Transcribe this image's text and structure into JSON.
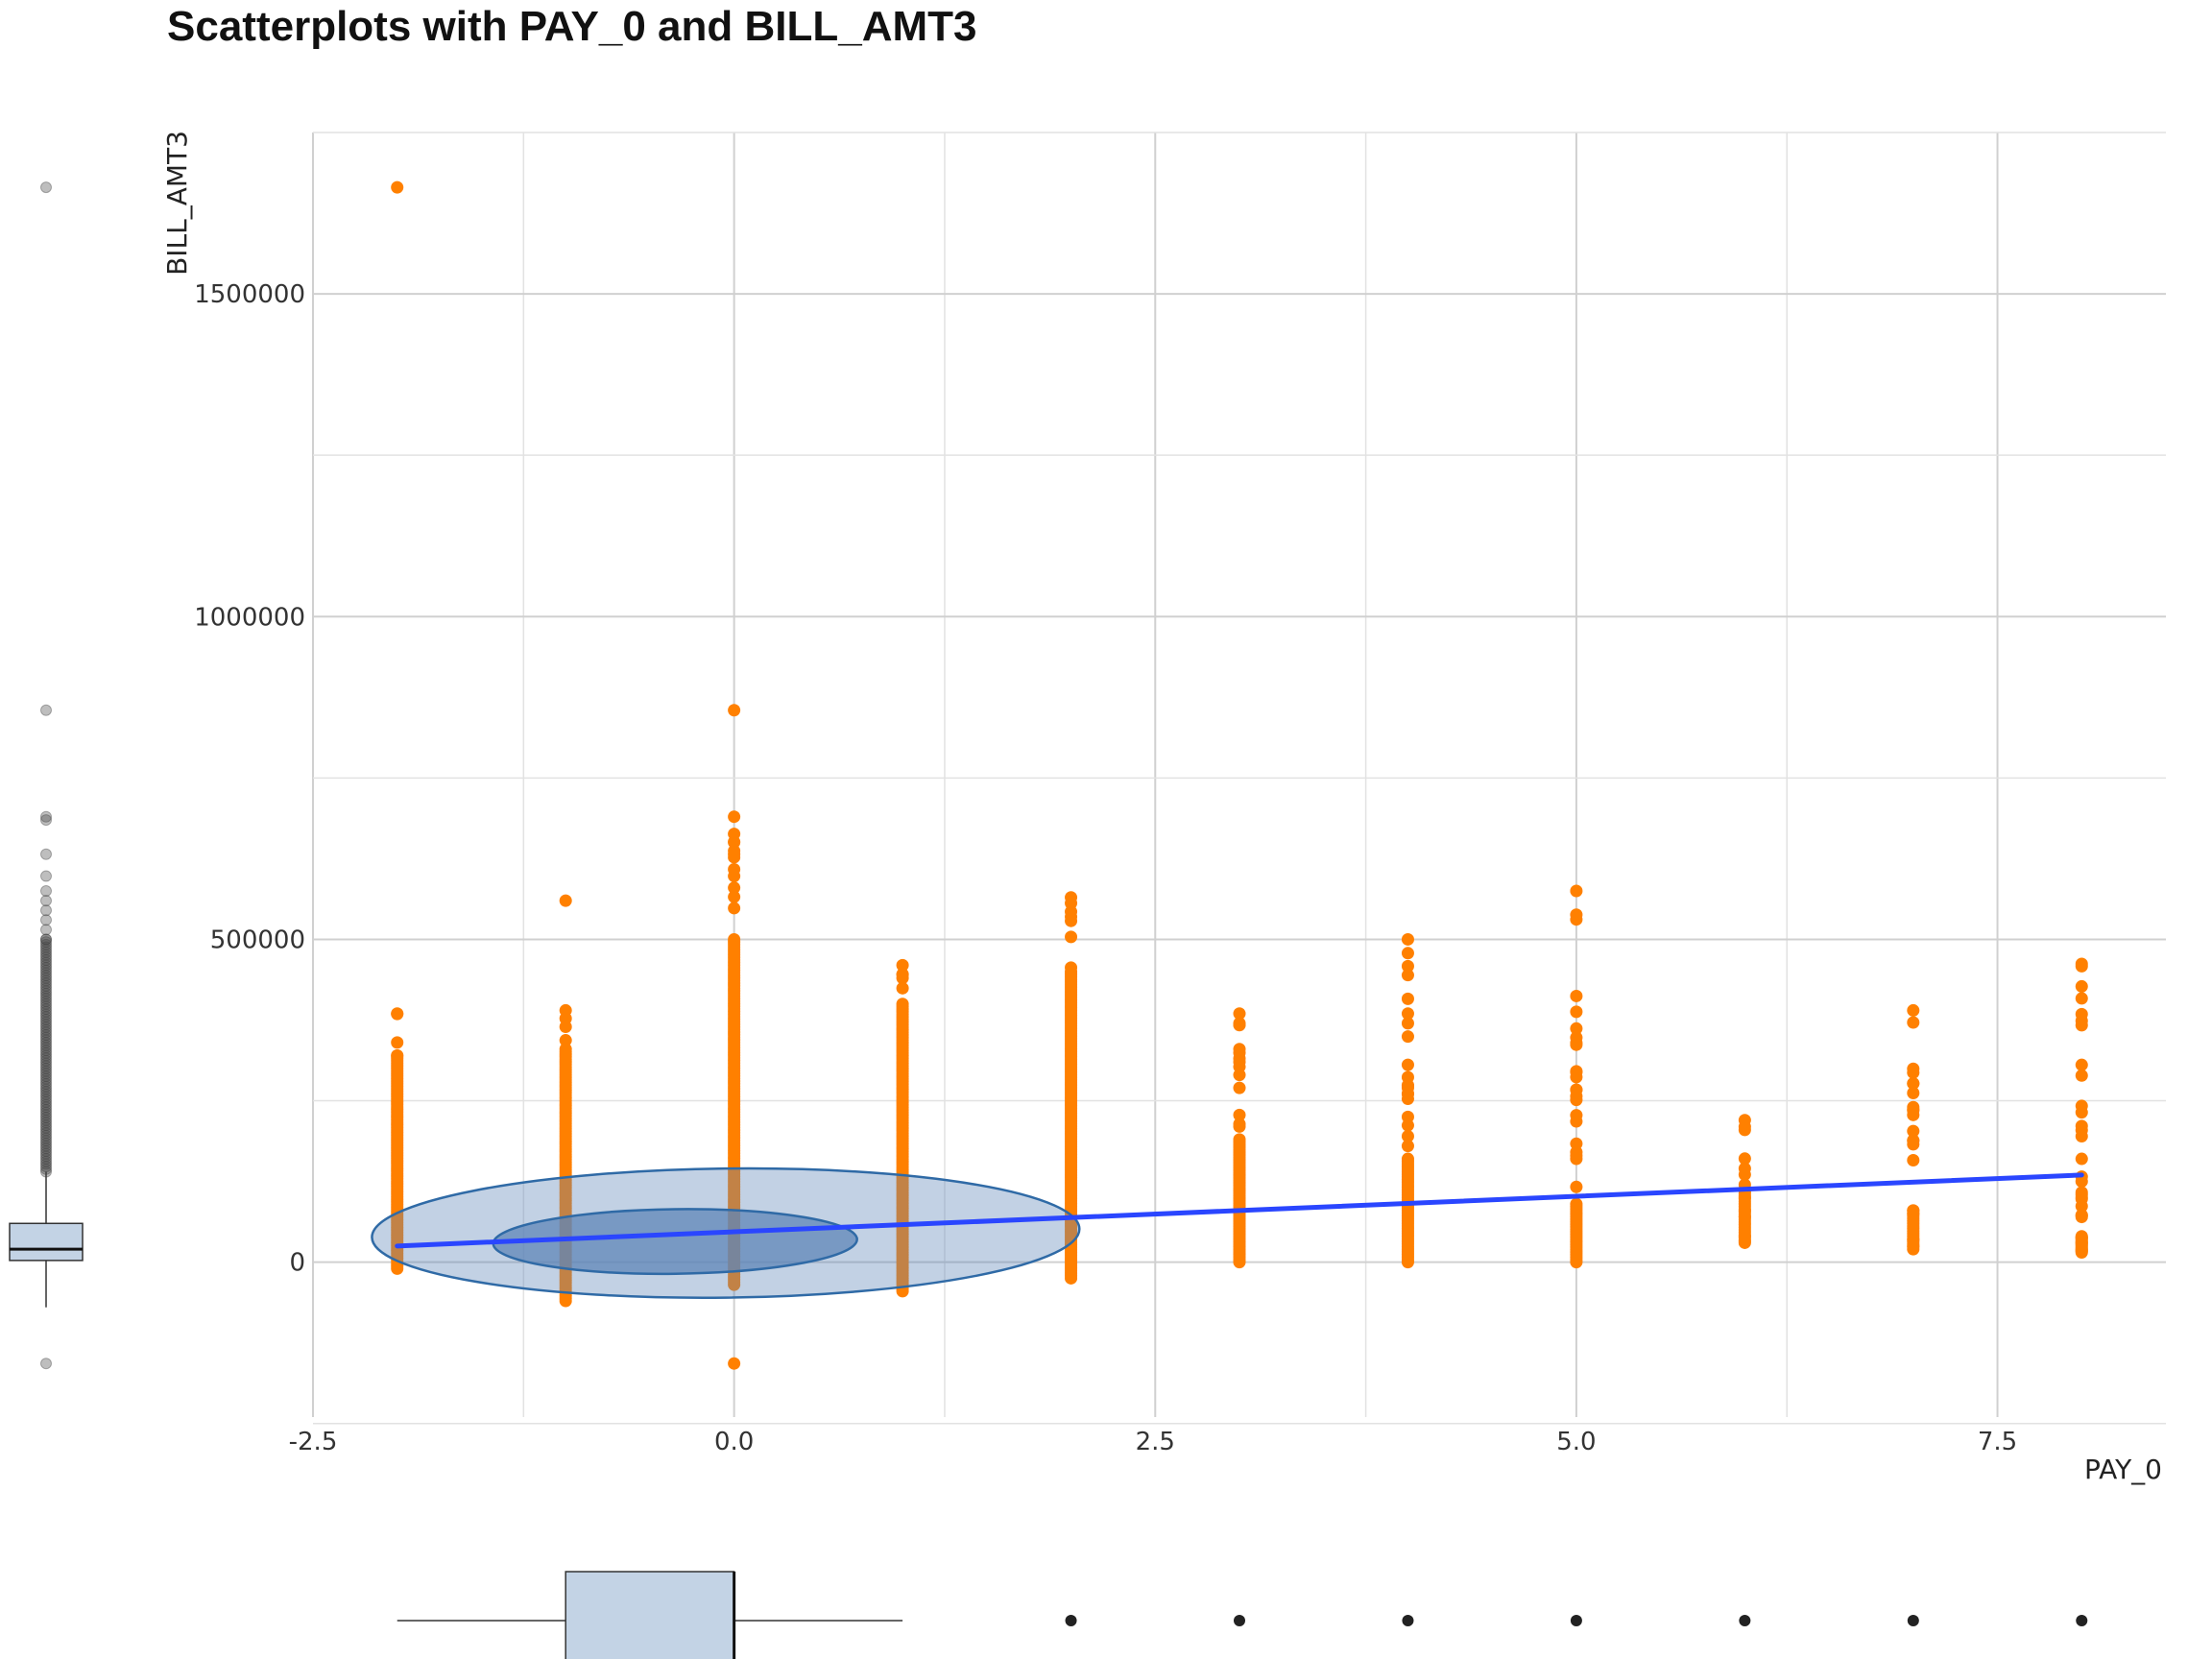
{
  "chart_data": {
    "type": "scatter",
    "title": "Scatterplots with PAY_0 and BILL_AMT3",
    "xlabel": "PAY_0",
    "ylabel": "BILL_AMT3",
    "xlim": [
      -2.5,
      8.5
    ],
    "ylim": [
      -240000,
      1750000
    ],
    "x_ticks": [
      "-2.5",
      "0.0",
      "2.5",
      "5.0",
      "7.5"
    ],
    "y_ticks": [
      "0",
      "500000",
      "1000000",
      "1500000"
    ],
    "grid": true,
    "point_color": "#ff8000",
    "line_color": "#2a46ff",
    "ellipse_fill": "#5f86b8",
    "ellipse_stroke": "#2f6aa6",
    "box_fill": "#c3d3e5",
    "columns": [
      {
        "x": -2,
        "min": -10000,
        "max": 390000,
        "dense_max": 320000,
        "extra": [
          1665000,
          385000
        ]
      },
      {
        "x": -1,
        "min": -60000,
        "max": 395000,
        "dense_max": 330000,
        "extra": [
          560000,
          390000
        ]
      },
      {
        "x": 0,
        "min": -35000,
        "max": 700000,
        "dense_max": 500000,
        "extra": [
          855000,
          690000,
          632000,
          598000,
          580000,
          -157000
        ]
      },
      {
        "x": 1,
        "min": -45000,
        "max": 465000,
        "dense_max": 400000,
        "extra": [
          460000,
          440000
        ]
      },
      {
        "x": 2,
        "min": -25000,
        "max": 565000,
        "dense_max": 450000,
        "extra": [
          565000,
          535000
        ]
      },
      {
        "x": 3,
        "min": 0,
        "max": 385000,
        "dense_max": 190000,
        "extra": [
          385000,
          330000,
          310000,
          270000,
          228000,
          210000
        ]
      },
      {
        "x": 4,
        "min": 0,
        "max": 500000,
        "dense_max": 160000,
        "extra": [
          500000,
          385000,
          370000,
          270000,
          225000,
          195000
        ]
      },
      {
        "x": 5,
        "min": 0,
        "max": 575000,
        "dense_max": 90000,
        "extra": [
          575000,
          218000,
          165000,
          160000
        ]
      },
      {
        "x": 6,
        "min": 30000,
        "max": 220000,
        "dense_max": 110000,
        "extra": [
          220000,
          145000,
          120000,
          110000,
          100000,
          80000,
          70000,
          40000,
          32000
        ]
      },
      {
        "x": 7,
        "min": 20000,
        "max": 390000,
        "dense_max": 80000,
        "extra": [
          390000,
          235000,
          228000,
          188000,
          80000,
          75000,
          35000,
          25000
        ]
      },
      {
        "x": 8,
        "min": 15000,
        "max": 460000,
        "dense_max": 40000,
        "extra": [
          462000,
          367000,
          242000,
          195000,
          160000,
          125000,
          108000,
          70000,
          38000,
          30000,
          18000
        ]
      }
    ],
    "regression_line": {
      "x": [
        -2,
        8
      ],
      "y": [
        25000,
        135000
      ]
    },
    "ellipses": [
      {
        "cx": -0.05,
        "cy": 45000,
        "rx": 2.1,
        "ry": 100000,
        "tilt": -0.012,
        "opacity": 0.38
      },
      {
        "cx": -0.35,
        "cy": 32000,
        "rx": 1.08,
        "ry": 50000,
        "tilt": -0.012,
        "opacity": 0.75
      }
    ],
    "y_boxplot": {
      "q1": 2600,
      "median": 20000,
      "q3": 60000,
      "whisker_low": -70000,
      "whisker_high": 140000,
      "outliers": [
        1665000,
        855000,
        690000,
        685000,
        632000,
        598000,
        575000,
        560000,
        545000,
        530000,
        515000,
        500000,
        -157000
      ],
      "dense_outlier_range": [
        140000,
        500000
      ]
    },
    "x_boxplot": {
      "q1": -1,
      "median": 0,
      "q3": 0,
      "whisker_low": -2,
      "whisker_high": 1,
      "outliers": [
        2,
        3,
        4,
        5,
        6,
        7,
        8
      ]
    }
  }
}
